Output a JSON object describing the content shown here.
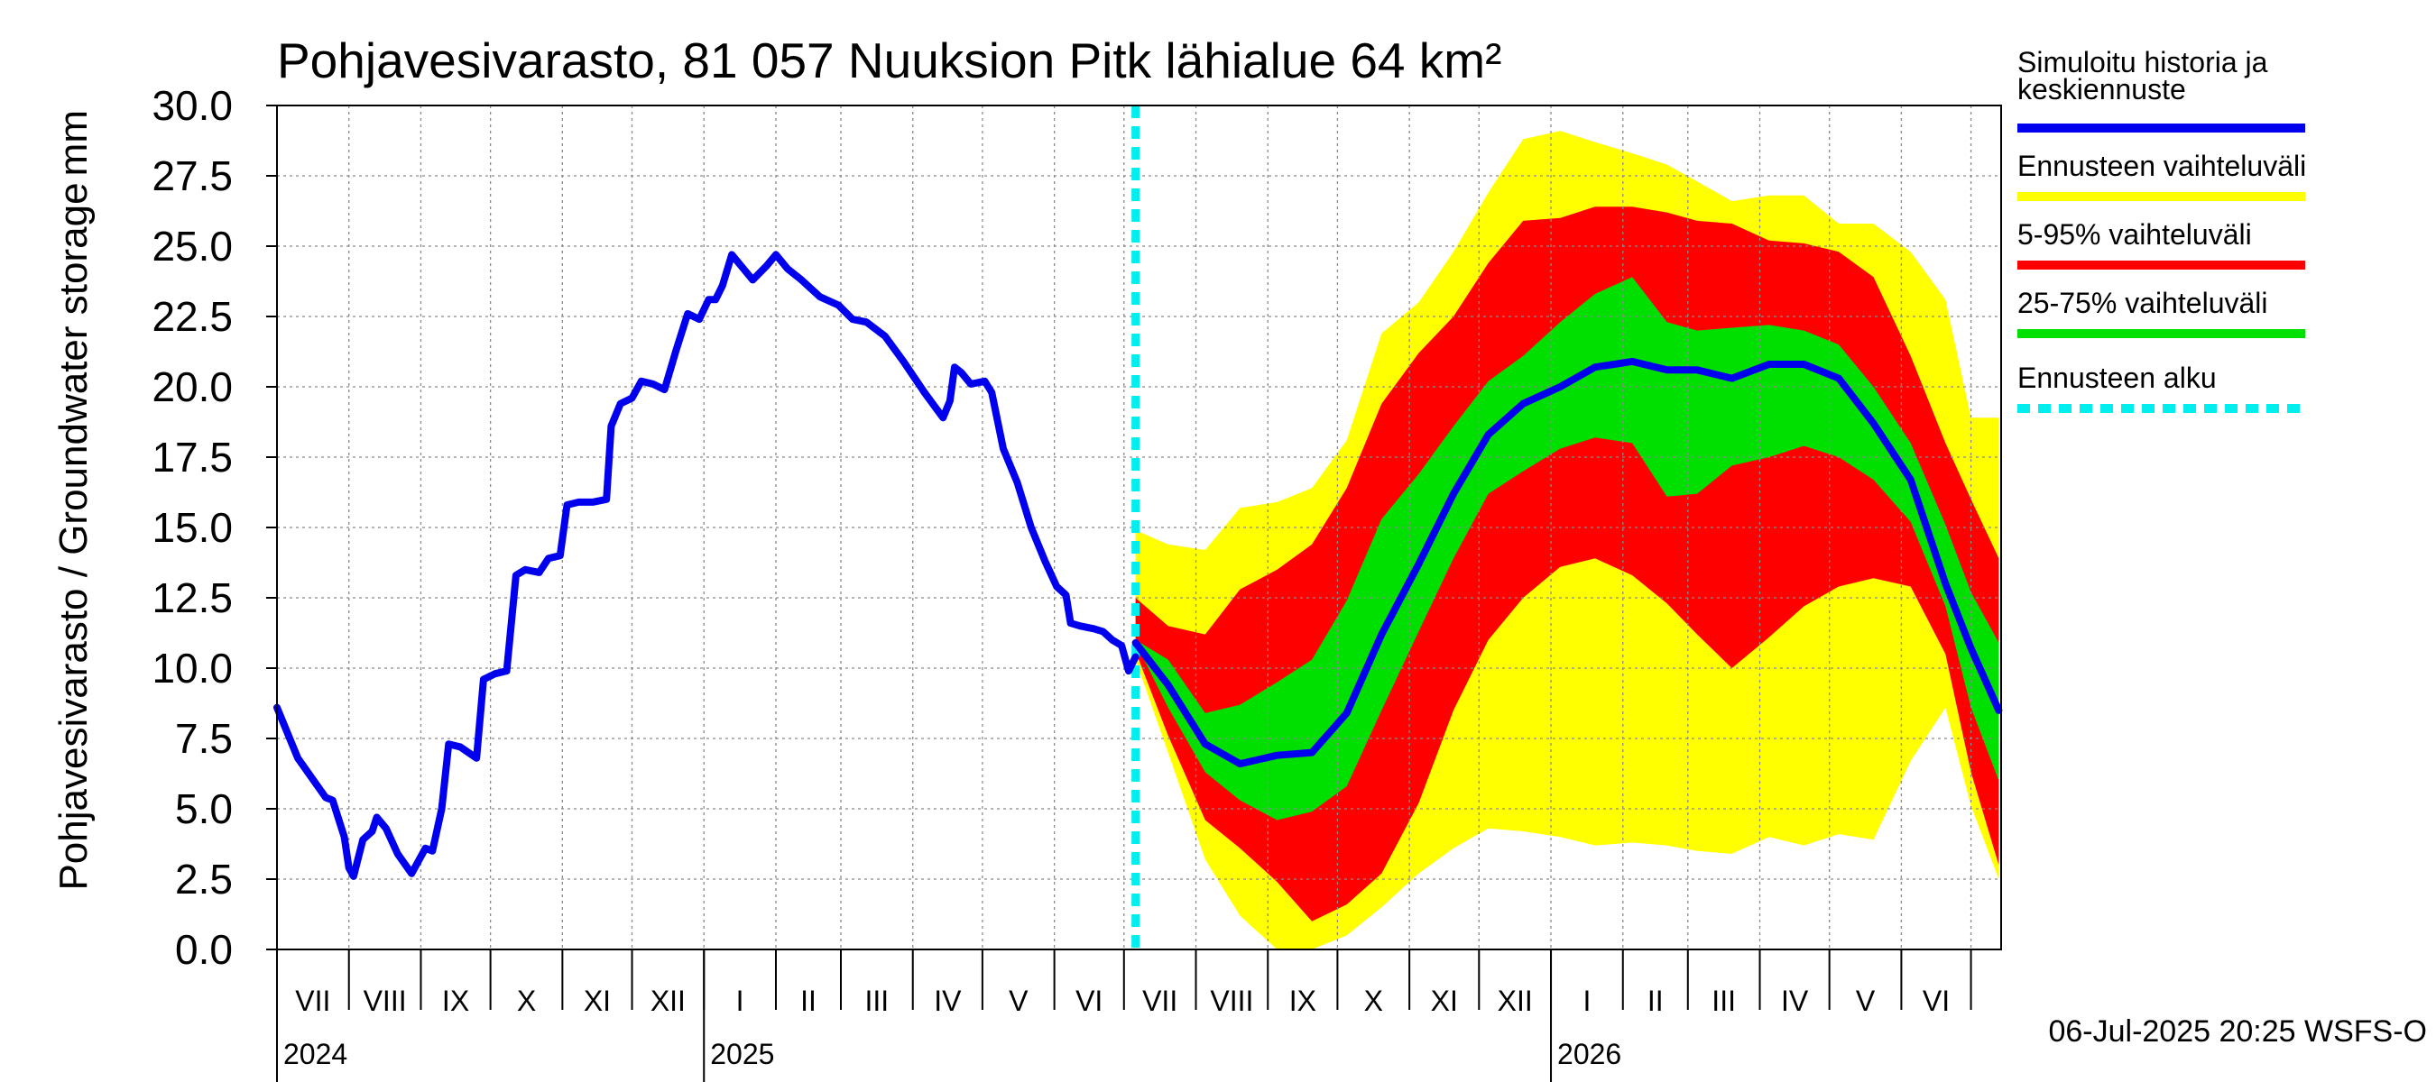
{
  "chart_data": {
    "type": "area",
    "title": "Pohjavesivarasto, 81 057 Nuuksion Pitk lähialue 64 km²",
    "ylabel": "Pohjavesivarasto / Groundwater storage",
    "yunit": "mm",
    "ylim": [
      0,
      30
    ],
    "y_ticks": [
      "0.0",
      "2.5",
      "5.0",
      "7.5",
      "10.0",
      "12.5",
      "15.0",
      "17.5",
      "20.0",
      "22.5",
      "25.0",
      "27.5",
      "30.0"
    ],
    "x_range": [
      "2024-07-01",
      "2026-07-14"
    ],
    "month_labels": [
      "VII",
      "VIII",
      "IX",
      "X",
      "XI",
      "XII",
      "I",
      "II",
      "III",
      "IV",
      "V",
      "VI",
      "VII",
      "VIII",
      "IX",
      "X",
      "XI",
      "XII",
      "I",
      "II",
      "III",
      "IV",
      "V",
      "VI"
    ],
    "year_labels": [
      {
        "text": "2024",
        "date": "2024-07-01"
      },
      {
        "text": "2025",
        "date": "2025-01-01"
      },
      {
        "text": "2026",
        "date": "2026-01-01"
      }
    ],
    "forecast_start": "2025-07-06",
    "grid": true,
    "legend_position": "right",
    "timestamp": "06-Jul-2025 20:25 WSFS-O",
    "legend": [
      {
        "label": "Simuloitu historia ja keskiennuste",
        "color": "#0000ee",
        "style": "solid"
      },
      {
        "label": "Ennusteen vaihteluväli",
        "color": "#ffff00",
        "style": "solid"
      },
      {
        "label": "5-95% vaihteluväli",
        "color": "#ff0000",
        "style": "solid"
      },
      {
        "label": "25-75% vaihteluväli",
        "color": "#00e000",
        "style": "solid"
      },
      {
        "label": "Ennusteen alku",
        "color": "#00eeee",
        "style": "dashed"
      }
    ],
    "history": [
      [
        "2024-07-01",
        8.6
      ],
      [
        "2024-07-10",
        6.8
      ],
      [
        "2024-07-22",
        5.4
      ],
      [
        "2024-07-25",
        5.3
      ],
      [
        "2024-07-30",
        4.0
      ],
      [
        "2024-08-01",
        2.9
      ],
      [
        "2024-08-03",
        2.6
      ],
      [
        "2024-08-07",
        3.9
      ],
      [
        "2024-08-11",
        4.2
      ],
      [
        "2024-08-13",
        4.7
      ],
      [
        "2024-08-17",
        4.3
      ],
      [
        "2024-08-22",
        3.4
      ],
      [
        "2024-08-28",
        2.7
      ],
      [
        "2024-09-03",
        3.6
      ],
      [
        "2024-09-06",
        3.5
      ],
      [
        "2024-09-10",
        5.0
      ],
      [
        "2024-09-13",
        7.3
      ],
      [
        "2024-09-18",
        7.2
      ],
      [
        "2024-09-25",
        6.8
      ],
      [
        "2024-09-28",
        9.6
      ],
      [
        "2024-10-03",
        9.8
      ],
      [
        "2024-10-08",
        9.9
      ],
      [
        "2024-10-12",
        13.3
      ],
      [
        "2024-10-16",
        13.5
      ],
      [
        "2024-10-22",
        13.4
      ],
      [
        "2024-10-26",
        13.9
      ],
      [
        "2024-10-31",
        14.0
      ],
      [
        "2024-11-03",
        15.8
      ],
      [
        "2024-11-08",
        15.9
      ],
      [
        "2024-11-14",
        15.9
      ],
      [
        "2024-11-20",
        16.0
      ],
      [
        "2024-11-22",
        18.6
      ],
      [
        "2024-11-26",
        19.4
      ],
      [
        "2024-12-01",
        19.6
      ],
      [
        "2024-12-05",
        20.2
      ],
      [
        "2024-12-10",
        20.1
      ],
      [
        "2024-12-15",
        19.9
      ],
      [
        "2024-12-20",
        21.3
      ],
      [
        "2024-12-25",
        22.6
      ],
      [
        "2024-12-30",
        22.4
      ],
      [
        "2025-01-03",
        23.1
      ],
      [
        "2025-01-06",
        23.1
      ],
      [
        "2025-01-09",
        23.6
      ],
      [
        "2025-01-13",
        24.7
      ],
      [
        "2025-01-18",
        24.2
      ],
      [
        "2025-01-22",
        23.8
      ],
      [
        "2025-01-28",
        24.3
      ],
      [
        "2025-02-01",
        24.7
      ],
      [
        "2025-02-06",
        24.2
      ],
      [
        "2025-02-12",
        23.8
      ],
      [
        "2025-02-20",
        23.2
      ],
      [
        "2025-02-28",
        22.9
      ],
      [
        "2025-03-06",
        22.4
      ],
      [
        "2025-03-12",
        22.3
      ],
      [
        "2025-03-20",
        21.8
      ],
      [
        "2025-03-28",
        20.9
      ],
      [
        "2025-04-06",
        19.8
      ],
      [
        "2025-04-14",
        18.9
      ],
      [
        "2025-04-17",
        19.5
      ],
      [
        "2025-04-19",
        20.7
      ],
      [
        "2025-04-22",
        20.5
      ],
      [
        "2025-04-26",
        20.1
      ],
      [
        "2025-05-02",
        20.2
      ],
      [
        "2025-05-05",
        19.8
      ],
      [
        "2025-05-10",
        17.8
      ],
      [
        "2025-05-16",
        16.6
      ],
      [
        "2025-05-22",
        15.0
      ],
      [
        "2025-05-28",
        13.8
      ],
      [
        "2025-06-02",
        12.9
      ],
      [
        "2025-06-06",
        12.6
      ],
      [
        "2025-06-08",
        11.6
      ],
      [
        "2025-06-12",
        11.5
      ],
      [
        "2025-06-18",
        11.4
      ],
      [
        "2025-06-22",
        11.3
      ],
      [
        "2025-06-26",
        11.0
      ],
      [
        "2025-06-30",
        10.8
      ],
      [
        "2025-07-03",
        9.9
      ],
      [
        "2025-07-06",
        10.4
      ]
    ],
    "forecast": {
      "dates": [
        "2025-07-06",
        "2025-07-20",
        "2025-08-05",
        "2025-08-20",
        "2025-09-05",
        "2025-09-20",
        "2025-10-05",
        "2025-10-20",
        "2025-11-05",
        "2025-11-20",
        "2025-12-05",
        "2025-12-20",
        "2026-01-05",
        "2026-01-20",
        "2026-02-05",
        "2026-02-20",
        "2026-03-05",
        "2026-03-20",
        "2026-04-05",
        "2026-04-20",
        "2026-05-05",
        "2026-05-20",
        "2026-06-05",
        "2026-06-20",
        "2026-07-01",
        "2026-07-13"
      ],
      "min": [
        10.3,
        7.0,
        3.2,
        1.2,
        0.0,
        0.0,
        0.5,
        1.5,
        2.7,
        3.6,
        4.3,
        4.2,
        4.0,
        3.7,
        3.8,
        3.7,
        3.5,
        3.4,
        4.0,
        3.7,
        4.1,
        3.9,
        6.7,
        8.6,
        5.1,
        2.5
      ],
      "p5": [
        10.6,
        7.6,
        4.6,
        3.6,
        2.4,
        1.0,
        1.6,
        2.7,
        5.2,
        8.5,
        11.0,
        12.5,
        13.6,
        13.9,
        13.3,
        12.3,
        11.2,
        10.0,
        11.1,
        12.2,
        12.9,
        13.2,
        12.9,
        10.5,
        6.3,
        3.0
      ],
      "p25": [
        10.9,
        8.6,
        6.3,
        5.3,
        4.6,
        4.9,
        5.8,
        8.5,
        11.3,
        13.9,
        16.2,
        17.0,
        17.8,
        18.2,
        18.0,
        16.1,
        16.2,
        17.2,
        17.5,
        17.9,
        17.5,
        16.7,
        15.2,
        12.2,
        8.6,
        6.0
      ],
      "median": [
        10.9,
        9.4,
        7.3,
        6.6,
        6.9,
        7.0,
        8.4,
        11.2,
        13.7,
        16.2,
        18.3,
        19.4,
        20.0,
        20.7,
        20.9,
        20.6,
        20.6,
        20.3,
        20.8,
        20.8,
        20.3,
        18.7,
        16.7,
        13.0,
        10.7,
        8.5
      ],
      "p75": [
        11.0,
        10.3,
        8.4,
        8.7,
        9.5,
        10.3,
        12.4,
        15.3,
        16.9,
        18.6,
        20.2,
        21.1,
        22.3,
        23.3,
        23.9,
        22.3,
        22.0,
        22.1,
        22.2,
        22.0,
        21.5,
        20.0,
        18.0,
        15.1,
        12.7,
        10.9
      ],
      "p95": [
        12.5,
        11.5,
        11.2,
        12.8,
        13.5,
        14.4,
        16.4,
        19.4,
        21.2,
        22.5,
        24.4,
        25.9,
        26.0,
        26.4,
        26.4,
        26.2,
        25.9,
        25.8,
        25.2,
        25.1,
        24.8,
        23.9,
        21.1,
        18.0,
        16.0,
        13.9
      ],
      "max": [
        14.9,
        14.4,
        14.2,
        15.7,
        15.9,
        16.4,
        18.1,
        21.9,
        23.0,
        24.8,
        26.9,
        28.8,
        29.1,
        28.7,
        28.3,
        27.9,
        27.3,
        26.6,
        26.8,
        26.8,
        25.8,
        25.8,
        24.8,
        23.1,
        18.9,
        18.9
      ]
    }
  }
}
